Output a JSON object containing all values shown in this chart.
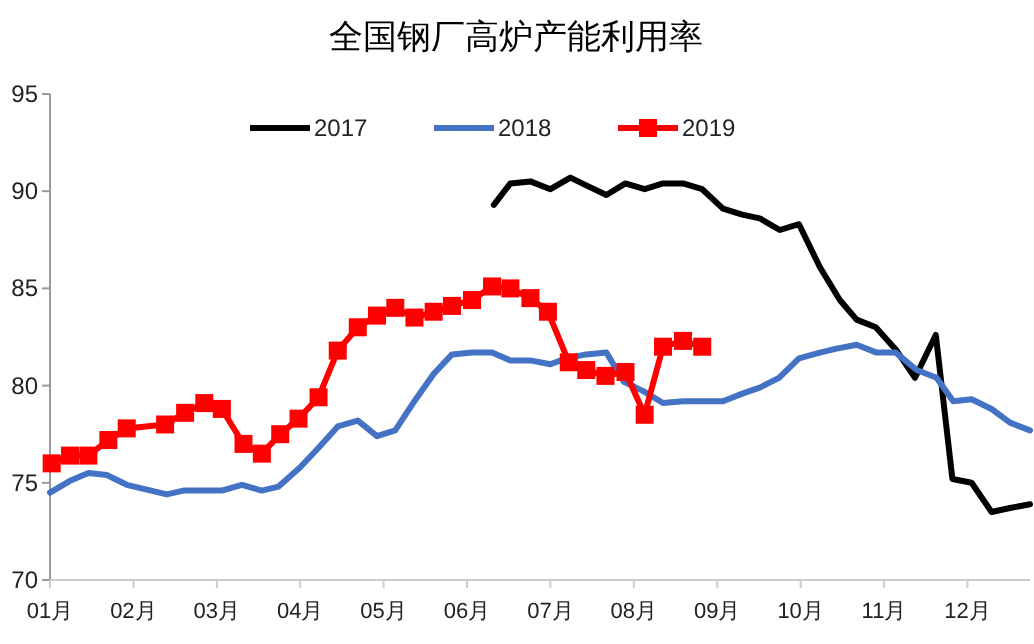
{
  "chart_data": {
    "type": "line",
    "title": "全国钢厂高炉产能利用率",
    "xlim": [
      1,
      12.75
    ],
    "xticks": [
      {
        "value": 1,
        "label": "01月"
      },
      {
        "value": 2,
        "label": "02月"
      },
      {
        "value": 3,
        "label": "03月"
      },
      {
        "value": 4,
        "label": "04月"
      },
      {
        "value": 5,
        "label": "05月"
      },
      {
        "value": 6,
        "label": "06月"
      },
      {
        "value": 7,
        "label": "07月"
      },
      {
        "value": 8,
        "label": "08月"
      },
      {
        "value": 9,
        "label": "09月"
      },
      {
        "value": 10,
        "label": "10月"
      },
      {
        "value": 11,
        "label": "11月"
      },
      {
        "value": 12,
        "label": "12月"
      }
    ],
    "ylim": [
      70,
      95
    ],
    "yticks": [
      70,
      75,
      80,
      85,
      90,
      95
    ],
    "grid": false,
    "legend": "top",
    "series": [
      {
        "name": "2017",
        "color": "#000000",
        "marker": "none",
        "x": [
          6.32,
          6.52,
          6.76,
          7.0,
          7.24,
          7.43,
          7.67,
          7.9,
          8.13,
          8.35,
          8.59,
          8.82,
          9.07,
          9.3,
          9.51,
          9.75,
          9.98,
          10.23,
          10.47,
          10.67,
          10.9,
          11.15,
          11.37,
          11.62,
          11.82,
          12.05,
          12.29,
          12.51,
          12.75
        ],
        "values": [
          89.3,
          90.4,
          90.5,
          90.1,
          90.7,
          90.3,
          89.8,
          90.4,
          90.1,
          90.4,
          90.4,
          90.1,
          89.1,
          88.8,
          88.6,
          88.0,
          88.3,
          86.1,
          84.4,
          83.4,
          83.0,
          81.8,
          80.4,
          82.6,
          75.2,
          75.0,
          73.5,
          73.7,
          73.9
        ]
      },
      {
        "name": "2018",
        "color": "#4472c4",
        "marker": "none",
        "x": [
          1.0,
          1.24,
          1.46,
          1.68,
          1.92,
          2.4,
          2.6,
          3.06,
          3.3,
          3.54,
          3.74,
          4.0,
          4.22,
          4.45,
          4.69,
          4.92,
          5.14,
          5.37,
          5.6,
          5.82,
          6.06,
          6.3,
          6.52,
          6.76,
          7.0,
          7.19,
          7.43,
          7.67,
          7.88,
          8.12,
          8.35,
          8.59,
          9.07,
          9.31,
          9.51,
          9.74,
          9.98,
          10.23,
          10.43,
          10.67,
          10.91,
          11.14,
          11.39,
          11.63,
          11.83,
          12.05,
          12.29,
          12.51,
          12.75
        ],
        "values": [
          74.5,
          75.1,
          75.5,
          75.4,
          74.9,
          74.4,
          74.6,
          74.6,
          74.9,
          74.6,
          74.8,
          75.8,
          76.8,
          77.9,
          78.2,
          77.4,
          77.7,
          79.2,
          80.6,
          81.6,
          81.7,
          81.7,
          81.3,
          81.3,
          81.1,
          81.4,
          81.6,
          81.7,
          80.2,
          79.7,
          79.1,
          79.2,
          79.2,
          79.6,
          79.9,
          80.4,
          81.4,
          81.7,
          81.9,
          82.1,
          81.7,
          81.7,
          80.8,
          80.4,
          79.2,
          79.3,
          78.8,
          78.1,
          77.7
        ]
      },
      {
        "name": "2019",
        "color": "#ff0000",
        "marker": "square",
        "x": [
          1.02,
          1.24,
          1.46,
          1.7,
          1.92,
          2.38,
          2.62,
          2.85,
          3.06,
          3.32,
          3.54,
          3.76,
          3.98,
          4.22,
          4.45,
          4.69,
          4.92,
          5.14,
          5.37,
          5.6,
          5.82,
          6.06,
          6.3,
          6.52,
          6.76,
          6.97,
          7.22,
          7.43,
          7.66,
          7.9,
          8.13,
          8.35,
          8.59,
          8.82
        ],
        "values": [
          76.0,
          76.4,
          76.4,
          77.2,
          77.8,
          78.0,
          78.6,
          79.1,
          78.8,
          77.0,
          76.5,
          77.5,
          78.3,
          79.4,
          81.8,
          83.0,
          83.6,
          84.0,
          83.5,
          83.8,
          84.1,
          84.4,
          85.1,
          85.0,
          84.5,
          83.8,
          81.2,
          80.8,
          80.5,
          80.7,
          78.5,
          82.0,
          82.3,
          82.0
        ]
      }
    ]
  }
}
